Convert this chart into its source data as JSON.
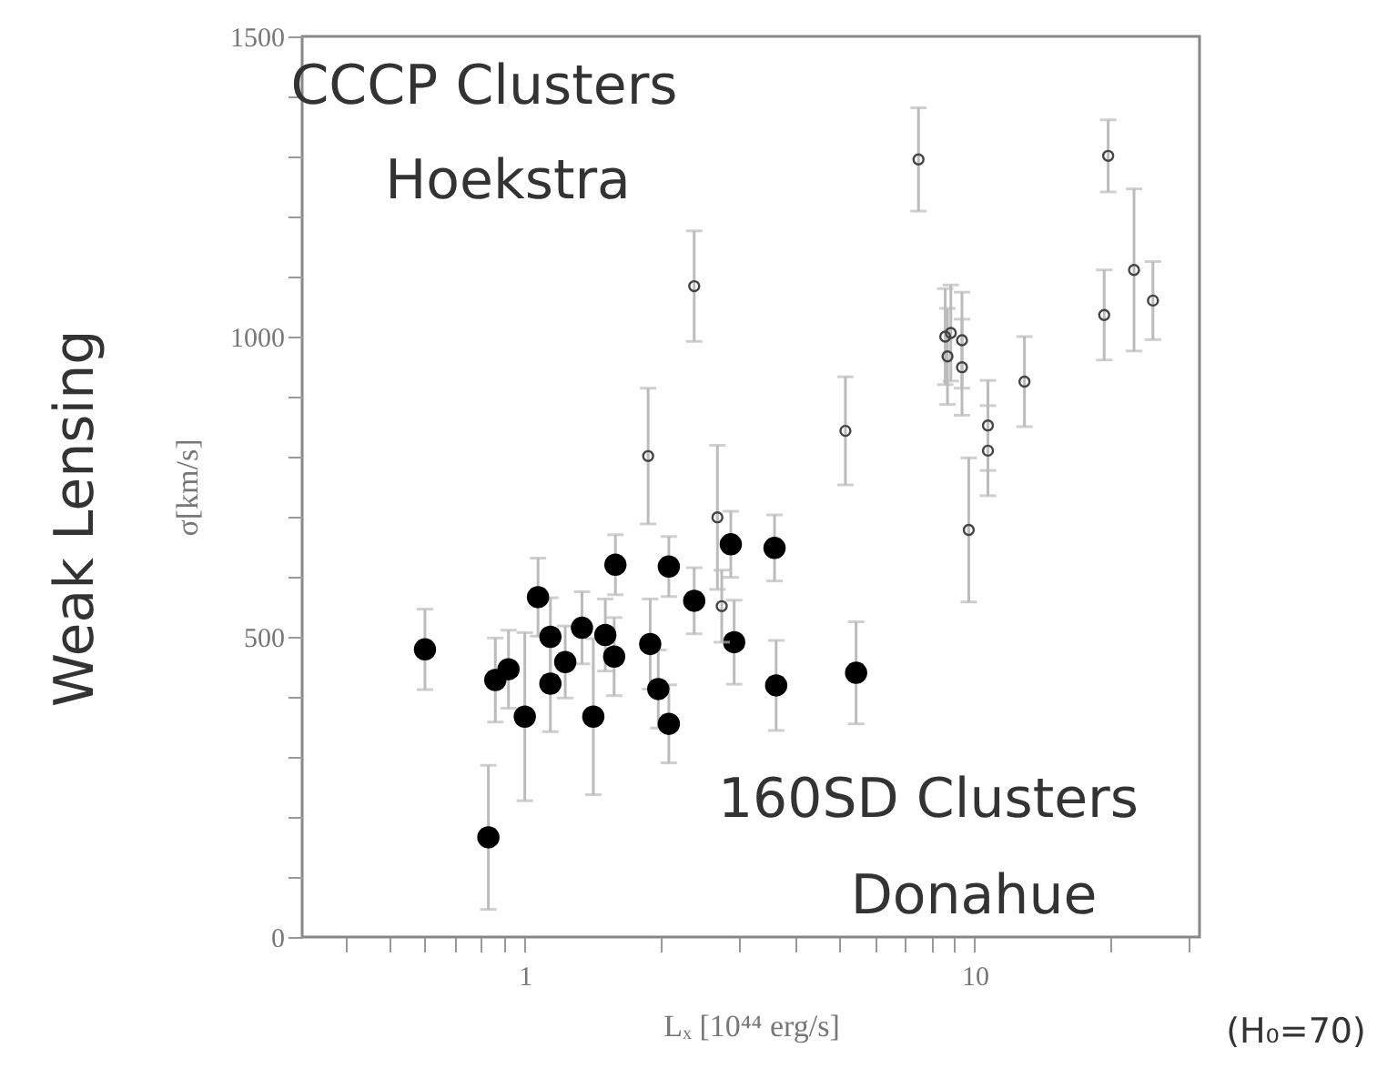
{
  "chart_data": {
    "type": "scatter",
    "xlabel": "Lₓ [10⁴⁴ erg/s]",
    "ylabel": "σ[km/s]",
    "log": "x",
    "grid": false,
    "marker": "circle",
    "xlim": [
      0.32,
      31.6
    ],
    "xticks": [
      {
        "value": 0.4,
        "label": null
      },
      {
        "value": 0.5,
        "label": null
      },
      {
        "value": 0.6,
        "label": null
      },
      {
        "value": 0.7,
        "label": null
      },
      {
        "value": 0.8,
        "label": null
      },
      {
        "value": 0.9,
        "label": null
      },
      1,
      {
        "value": 2,
        "label": null
      },
      {
        "value": 3,
        "label": null
      },
      {
        "value": 4,
        "label": null
      },
      {
        "value": 5,
        "label": null
      },
      {
        "value": 6,
        "label": null
      },
      {
        "value": 7,
        "label": null
      },
      {
        "value": 8,
        "label": null
      },
      {
        "value": 9,
        "label": null
      },
      10,
      {
        "value": 20,
        "label": null
      },
      {
        "value": 30,
        "label": null
      }
    ],
    "ylim": [
      0,
      1500
    ],
    "yticks": [
      0,
      {
        "value": 100,
        "label": null
      },
      {
        "value": 200,
        "label": null
      },
      {
        "value": 300,
        "label": null
      },
      {
        "value": 400,
        "label": null
      },
      500,
      {
        "value": 600,
        "label": null
      },
      {
        "value": 700,
        "label": null
      },
      {
        "value": 800,
        "label": null
      },
      {
        "value": 900,
        "label": null
      },
      1000,
      {
        "value": 1100,
        "label": null
      },
      {
        "value": 1200,
        "label": null
      },
      {
        "value": 1300,
        "label": null
      },
      {
        "value": 1400,
        "label": null
      },
      1500
    ],
    "series": [
      {
        "color": "#000000",
        "x": [
          0.6,
          0.83,
          0.86,
          0.92,
          1.0,
          1.07,
          1.14,
          1.14,
          1.23,
          1.34,
          1.42,
          1.51,
          1.58,
          1.59,
          1.9,
          1.98,
          2.09,
          2.09,
          2.38,
          2.87,
          2.92,
          3.59,
          3.62,
          5.45
        ],
        "values": [
          479,
          166,
          428,
          446,
          367,
          566,
          500,
          422,
          458,
          515,
          367,
          503,
          467,
          620,
          488,
          413,
          355,
          617,
          560,
          654,
          491,
          648,
          419,
          440
        ],
        "errors": [
          67,
          120,
          70,
          65,
          140,
          65,
          65,
          80,
          60,
          60,
          130,
          60,
          65,
          50,
          75,
          65,
          65,
          50,
          55,
          55,
          70,
          55,
          75,
          85
        ]
      },
      {
        "color": "#444444",
        "x": [
          1.88,
          2.38,
          2.68,
          2.74,
          5.16,
          7.5,
          8.6,
          8.85,
          9.37,
          8.7,
          9.37,
          10.7,
          10.7,
          9.7,
          12.9,
          19.4,
          19.8,
          22.6,
          24.9
        ],
        "values": [
          801,
          1084,
          699,
          551,
          843,
          1295,
          1000,
          1006,
          994,
          967,
          949,
          852,
          810,
          678,
          925,
          1036,
          1301,
          1111,
          1060
        ],
        "errors": [
          113,
          92,
          120,
          60,
          90,
          86,
          80,
          80,
          80,
          80,
          80,
          75,
          75,
          120,
          75,
          75,
          60,
          135,
          65
        ]
      }
    ],
    "annotations": [
      "CCCP Clusters",
      "Hoekstra",
      "160SD Clusters",
      "Donahue",
      "(H₀=70)",
      "Weak Lensing"
    ]
  }
}
